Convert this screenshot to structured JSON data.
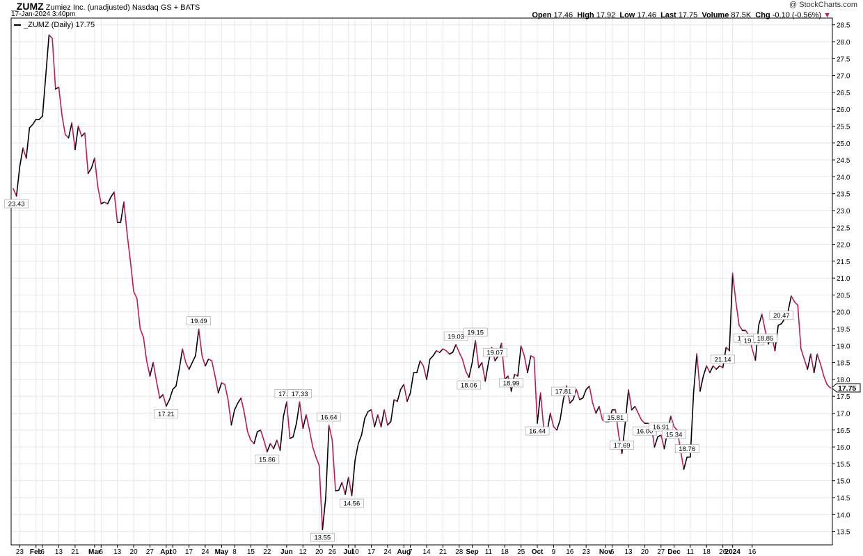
{
  "header": {
    "symbol": "_ZUMZ",
    "name": "Zumiez Inc. (unadjusted)",
    "exchange": "Nasdaq GS + BATS",
    "datetime": "17-Jan-2024 3:40pm",
    "legend": "_ZUMZ (Daily) 17.75",
    "copyright": "@ StockCharts.com",
    "stats": {
      "open_label": "Open",
      "open": "17.46",
      "high_label": "High",
      "high": "17.92",
      "low_label": "Low",
      "low": "17.46",
      "last_label": "Last",
      "last": "17.75",
      "volume_label": "Volume",
      "volume": "87.5K",
      "chg_label": "Chg",
      "chg": "-0.10 (-0.56%)"
    }
  },
  "chart_data": {
    "type": "line",
    "title": "_ZUMZ (Daily) 17.75",
    "ylim": [
      13.1,
      28.7
    ],
    "y_ticks": [
      "13.5",
      "14.0",
      "14.5",
      "15.0",
      "15.5",
      "16.0",
      "16.5",
      "17.0",
      "17.5",
      "18.0",
      "18.5",
      "19.0",
      "19.5",
      "20.0",
      "20.5",
      "21.0",
      "21.5",
      "22.0",
      "22.5",
      "23.0",
      "23.5",
      "24.0",
      "24.5",
      "25.0",
      "25.5",
      "26.0",
      "26.5",
      "27.0",
      "27.5",
      "28.0",
      "28.5"
    ],
    "x_ticks": [
      {
        "i": 2,
        "label": "23",
        "bold": false
      },
      {
        "i": 7,
        "label": "Feb",
        "bold": true
      },
      {
        "i": 9,
        "label": "6",
        "bold": false
      },
      {
        "i": 14,
        "label": "13",
        "bold": false
      },
      {
        "i": 19,
        "label": "21",
        "bold": false
      },
      {
        "i": 25,
        "label": "Mar",
        "bold": true
      },
      {
        "i": 27,
        "label": "6",
        "bold": false
      },
      {
        "i": 32,
        "label": "13",
        "bold": false
      },
      {
        "i": 37,
        "label": "20",
        "bold": false
      },
      {
        "i": 42,
        "label": "27",
        "bold": false
      },
      {
        "i": 47,
        "label": "Apr",
        "bold": true
      },
      {
        "i": 49,
        "label": "10",
        "bold": false
      },
      {
        "i": 54,
        "label": "17",
        "bold": false
      },
      {
        "i": 59,
        "label": "24",
        "bold": false
      },
      {
        "i": 64,
        "label": "May",
        "bold": true
      },
      {
        "i": 68,
        "label": "8",
        "bold": false
      },
      {
        "i": 73,
        "label": "15",
        "bold": false
      },
      {
        "i": 78,
        "label": "22",
        "bold": false
      },
      {
        "i": 84,
        "label": "Jun",
        "bold": true
      },
      {
        "i": 89,
        "label": "12",
        "bold": false
      },
      {
        "i": 94,
        "label": "20",
        "bold": false
      },
      {
        "i": 98,
        "label": "26",
        "bold": false
      },
      {
        "i": 103,
        "label": "Jul",
        "bold": true
      },
      {
        "i": 105,
        "label": "10",
        "bold": false
      },
      {
        "i": 110,
        "label": "17",
        "bold": false
      },
      {
        "i": 115,
        "label": "24",
        "bold": false
      },
      {
        "i": 120,
        "label": "Aug",
        "bold": true
      },
      {
        "i": 122,
        "label": "7",
        "bold": false
      },
      {
        "i": 127,
        "label": "14",
        "bold": false
      },
      {
        "i": 132,
        "label": "21",
        "bold": false
      },
      {
        "i": 137,
        "label": "28",
        "bold": false
      },
      {
        "i": 141,
        "label": "Sep",
        "bold": true
      },
      {
        "i": 146,
        "label": "11",
        "bold": false
      },
      {
        "i": 151,
        "label": "18",
        "bold": false
      },
      {
        "i": 156,
        "label": "25",
        "bold": false
      },
      {
        "i": 161,
        "label": "Oct",
        "bold": true
      },
      {
        "i": 166,
        "label": "9",
        "bold": false
      },
      {
        "i": 171,
        "label": "16",
        "bold": false
      },
      {
        "i": 176,
        "label": "23",
        "bold": false
      },
      {
        "i": 182,
        "label": "Nov",
        "bold": true
      },
      {
        "i": 184,
        "label": "6",
        "bold": false
      },
      {
        "i": 189,
        "label": "13",
        "bold": false
      },
      {
        "i": 194,
        "label": "20",
        "bold": false
      },
      {
        "i": 199,
        "label": "27",
        "bold": false
      },
      {
        "i": 203,
        "label": "Dec",
        "bold": true
      },
      {
        "i": 208,
        "label": "11",
        "bold": false
      },
      {
        "i": 213,
        "label": "18",
        "bold": false
      },
      {
        "i": 218,
        "label": "26",
        "bold": false
      },
      {
        "i": 221,
        "label": "2024",
        "bold": true
      },
      {
        "i": 227,
        "label": "16",
        "bold": false
      }
    ],
    "series": [
      {
        "values": [
          23.65,
          23.43,
          24.3,
          24.85,
          24.55,
          25.45,
          25.55,
          25.7,
          25.7,
          25.8,
          27.0,
          28.2,
          28.1,
          26.6,
          26.65,
          25.8,
          25.25,
          25.15,
          25.6,
          24.8,
          25.5,
          25.2,
          25.3,
          24.1,
          24.25,
          24.55,
          23.7,
          23.2,
          23.25,
          23.2,
          23.4,
          23.55,
          22.65,
          22.65,
          23.25,
          22.3,
          21.5,
          20.6,
          20.4,
          19.5,
          19.25,
          18.55,
          18.1,
          18.5,
          17.95,
          17.45,
          17.55,
          17.21,
          17.4,
          17.7,
          17.8,
          18.3,
          18.9,
          18.5,
          18.3,
          18.5,
          18.7,
          19.49,
          18.7,
          18.4,
          18.6,
          18.55,
          18.1,
          17.6,
          17.9,
          17.85,
          17.4,
          16.65,
          17.1,
          17.3,
          17.45,
          17.0,
          16.45,
          16.2,
          16.1,
          16.45,
          16.5,
          16.2,
          15.86,
          16.1,
          15.95,
          16.2,
          15.9,
          16.9,
          17.33,
          16.25,
          16.3,
          16.7,
          17.33,
          16.55,
          16.95,
          16.5,
          16.0,
          15.7,
          15.45,
          13.55,
          14.5,
          16.64,
          16.2,
          14.7,
          14.72,
          14.95,
          14.6,
          15.1,
          14.56,
          15.6,
          16.1,
          16.35,
          16.85,
          17.05,
          17.1,
          16.6,
          16.95,
          16.6,
          17.1,
          16.65,
          16.75,
          17.4,
          17.35,
          17.7,
          17.85,
          17.35,
          17.6,
          18.2,
          18.2,
          18.55,
          18.4,
          18.0,
          18.6,
          18.7,
          18.85,
          18.8,
          18.9,
          18.85,
          18.75,
          18.8,
          19.03,
          18.8,
          18.6,
          18.25,
          18.06,
          18.5,
          19.15,
          18.35,
          18.5,
          17.95,
          18.5,
          18.95,
          18.55,
          18.7,
          19.07,
          18.0,
          18.1,
          17.65,
          18.15,
          18.1,
          18.99,
          18.7,
          18.2,
          18.7,
          18.65,
          16.7,
          17.6,
          16.5,
          16.44,
          17.0,
          16.6,
          16.5,
          16.8,
          17.4,
          17.81,
          17.3,
          17.4,
          17.7,
          17.4,
          17.45,
          17.7,
          17.8,
          17.3,
          17.0,
          17.2,
          16.8,
          16.75,
          16.75,
          17.1,
          17.1,
          16.35,
          15.81,
          16.7,
          17.69,
          17.1,
          17.2,
          17.0,
          16.8,
          16.7,
          16.7,
          16.65,
          16.0,
          16.3,
          16.35,
          15.95,
          16.45,
          16.91,
          16.6,
          16.5,
          15.9,
          15.34,
          15.7,
          15.7,
          17.6,
          18.76,
          17.65,
          18.1,
          18.4,
          18.2,
          18.4,
          18.3,
          18.4,
          18.35,
          18.95,
          18.85,
          21.14,
          20.3,
          19.6,
          19.45,
          19.45,
          19.3,
          18.9,
          18.57,
          19.6,
          19.93,
          19.45,
          19.05,
          19.3,
          18.85,
          19.6,
          19.65,
          19.8,
          20.0,
          20.47,
          20.3,
          20.2,
          18.9,
          18.6,
          18.3,
          18.75,
          18.2,
          18.75,
          18.45,
          18.1,
          17.85,
          17.75
        ]
      }
    ],
    "annotations": [
      {
        "i": 1,
        "label": "23.43",
        "pos": "below"
      },
      {
        "i": 47,
        "label": "17.21",
        "pos": "below"
      },
      {
        "i": 57,
        "label": "19.49",
        "pos": "above"
      },
      {
        "i": 78,
        "label": "15.86",
        "pos": "below"
      },
      {
        "i": 84,
        "label": "17.33",
        "pos": "above"
      },
      {
        "i": 88,
        "label": "17.33",
        "pos": "above"
      },
      {
        "i": 95,
        "label": "13.55",
        "pos": "below"
      },
      {
        "i": 97,
        "label": "16.64",
        "pos": "above"
      },
      {
        "i": 104,
        "label": "14.56",
        "pos": "below"
      },
      {
        "i": 136,
        "label": "19.03",
        "pos": "above"
      },
      {
        "i": 140,
        "label": "18.06",
        "pos": "below"
      },
      {
        "i": 142,
        "label": "19.15",
        "pos": "above"
      },
      {
        "i": 148,
        "label": "19.07",
        "pos": "above"
      },
      {
        "i": 153,
        "label": "18.99",
        "pos": "above"
      },
      {
        "i": 161,
        "label": "16.44",
        "pos": "below"
      },
      {
        "i": 169,
        "label": "17.81",
        "pos": "above"
      },
      {
        "i": 185,
        "label": "15.81",
        "pos": "below"
      },
      {
        "i": 187,
        "label": "17.69",
        "pos": "above"
      },
      {
        "i": 194,
        "label": "16.00",
        "pos": "below"
      },
      {
        "i": 199,
        "label": "16.91",
        "pos": "above"
      },
      {
        "i": 203,
        "label": "15.34",
        "pos": "below"
      },
      {
        "i": 207,
        "label": "18.76",
        "pos": "above"
      },
      {
        "i": 218,
        "label": "21.14",
        "pos": "above"
      },
      {
        "i": 225,
        "label": "18.57",
        "pos": "below"
      },
      {
        "i": 227,
        "label": "19.93",
        "pos": "above"
      },
      {
        "i": 231,
        "label": "18.85",
        "pos": "below"
      },
      {
        "i": 236,
        "label": "20.47",
        "pos": "above"
      }
    ],
    "last_value": "17.75",
    "colors": {
      "up": "#000000",
      "down": "#c2185b",
      "grid": "#e6e6e6",
      "tick": "#000000"
    },
    "grid": true
  }
}
